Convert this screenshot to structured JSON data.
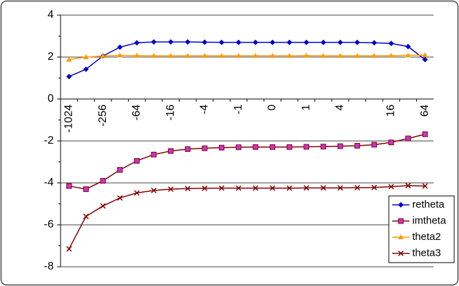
{
  "chart_data": {
    "type": "line",
    "categories": [
      "-1024",
      null,
      "-256",
      null,
      "-64",
      null,
      "-16",
      null,
      "-4",
      null,
      "-1",
      null,
      "0",
      null,
      "1",
      null,
      "4",
      null,
      null,
      "16",
      null,
      "64"
    ],
    "ylim": [
      -8,
      4
    ],
    "yticks": [
      -8,
      -6,
      -4,
      -2,
      0,
      2,
      4
    ],
    "grid": true,
    "legend": "right",
    "series": [
      {
        "name": "retheta",
        "color": "#0000cc",
        "marker": "diamond",
        "values": [
          1.07,
          1.42,
          2.05,
          2.47,
          2.68,
          2.72,
          2.72,
          2.72,
          2.71,
          2.7,
          2.7,
          2.7,
          2.7,
          2.7,
          2.7,
          2.7,
          2.7,
          2.7,
          2.68,
          2.65,
          2.5,
          1.88
        ]
      },
      {
        "name": "imtheta",
        "color": "#800000",
        "marker": "square",
        "values": [
          -4.15,
          -4.3,
          -3.9,
          -3.38,
          -2.95,
          -2.65,
          -2.48,
          -2.39,
          -2.35,
          -2.32,
          -2.3,
          -2.29,
          -2.29,
          -2.29,
          -2.28,
          -2.27,
          -2.25,
          -2.23,
          -2.18,
          -2.07,
          -1.88,
          -1.68
        ]
      },
      {
        "name": "theta2",
        "color": "#ff9900",
        "marker": "triangle",
        "values": [
          1.88,
          2.0,
          2.05,
          2.08,
          2.07,
          2.06,
          2.06,
          2.06,
          2.06,
          2.06,
          2.06,
          2.06,
          2.06,
          2.06,
          2.07,
          2.06,
          2.06,
          2.06,
          2.06,
          2.07,
          2.08,
          2.1
        ]
      },
      {
        "name": "theta3",
        "color": "#800000",
        "marker": "x",
        "values": [
          -7.15,
          -5.6,
          -5.1,
          -4.72,
          -4.48,
          -4.36,
          -4.3,
          -4.27,
          -4.26,
          -4.25,
          -4.25,
          -4.25,
          -4.25,
          -4.25,
          -4.24,
          -4.24,
          -4.24,
          -4.23,
          -4.22,
          -4.18,
          -4.13,
          -4.15
        ]
      }
    ]
  }
}
